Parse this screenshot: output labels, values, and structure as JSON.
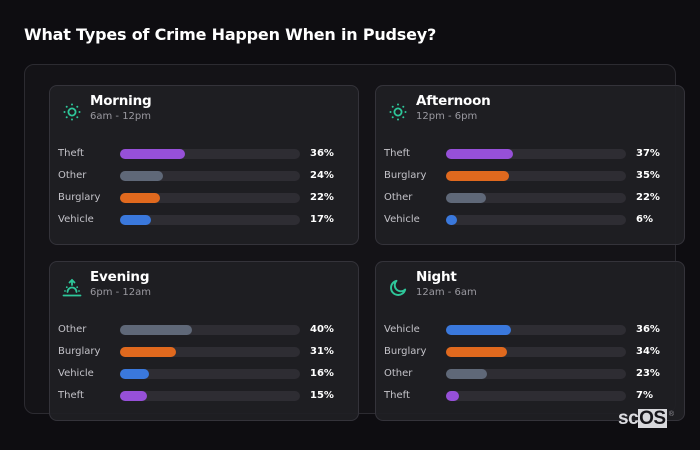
{
  "page": {
    "title": "What Types of Crime Happen When in Pudsey?",
    "background_color": "#0e0d11"
  },
  "colors": {
    "Theft": "#9650d8",
    "Other": "#5f6878",
    "Burglary": "#e0691e",
    "Vehicle": "#3a78dc",
    "icon_accent": "#2ec79a",
    "track": "#2e2d33"
  },
  "cards": [
    {
      "title": "Morning",
      "subtitle": "6am - 12pm",
      "icon": "sun-icon",
      "rows": [
        {
          "label": "Theft",
          "value": 36,
          "value_label": "36%"
        },
        {
          "label": "Other",
          "value": 24,
          "value_label": "24%"
        },
        {
          "label": "Burglary",
          "value": 22,
          "value_label": "22%"
        },
        {
          "label": "Vehicle",
          "value": 17,
          "value_label": "17%"
        }
      ]
    },
    {
      "title": "Afternoon",
      "subtitle": "12pm - 6pm",
      "icon": "sun-icon",
      "rows": [
        {
          "label": "Theft",
          "value": 37,
          "value_label": "37%"
        },
        {
          "label": "Burglary",
          "value": 35,
          "value_label": "35%"
        },
        {
          "label": "Other",
          "value": 22,
          "value_label": "22%"
        },
        {
          "label": "Vehicle",
          "value": 6,
          "value_label": "6%"
        }
      ]
    },
    {
      "title": "Evening",
      "subtitle": "6pm - 12am",
      "icon": "sunset-icon",
      "rows": [
        {
          "label": "Other",
          "value": 40,
          "value_label": "40%"
        },
        {
          "label": "Burglary",
          "value": 31,
          "value_label": "31%"
        },
        {
          "label": "Vehicle",
          "value": 16,
          "value_label": "16%"
        },
        {
          "label": "Theft",
          "value": 15,
          "value_label": "15%"
        }
      ]
    },
    {
      "title": "Night",
      "subtitle": "12am - 6am",
      "icon": "moon-icon",
      "rows": [
        {
          "label": "Vehicle",
          "value": 36,
          "value_label": "36%"
        },
        {
          "label": "Burglary",
          "value": 34,
          "value_label": "34%"
        },
        {
          "label": "Other",
          "value": 23,
          "value_label": "23%"
        },
        {
          "label": "Theft",
          "value": 7,
          "value_label": "7%"
        }
      ]
    }
  ],
  "logo": {
    "prefix": "sc",
    "boxed": "OS",
    "registered": "®"
  }
}
